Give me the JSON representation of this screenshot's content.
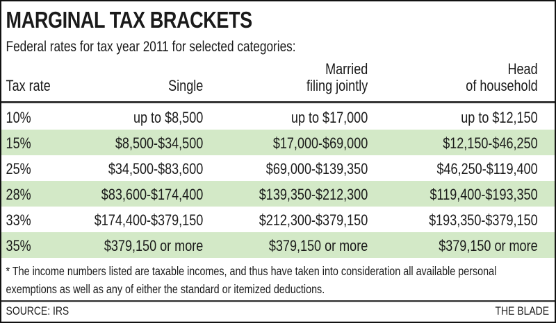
{
  "chart_data": {
    "type": "table",
    "title": "MARGINAL TAX BRACKETS",
    "subtitle": "Federal rates for tax year 2011 for selected categories:",
    "columns": [
      {
        "line1": "",
        "line2": "Tax rate"
      },
      {
        "line1": "",
        "line2": "Single"
      },
      {
        "line1": "Married",
        "line2": "filing jointly"
      },
      {
        "line1": "Head",
        "line2": "of household"
      }
    ],
    "rows": [
      [
        "10%",
        "up to $8,500",
        "up to $17,000",
        "up to $12,150"
      ],
      [
        "15%",
        "$8,500-$34,500",
        "$17,000-$69,000",
        "$12,150-$46,250"
      ],
      [
        "25%",
        "$34,500-$83,600",
        "$69,000-$139,350",
        "$46,250-$119,400"
      ],
      [
        "28%",
        "$83,600-$174,400",
        "$139,350-$212,300",
        "$119,400-$193,350"
      ],
      [
        "33%",
        "$174,400-$379,150",
        "$212,300-$379,150",
        "$193,350-$379,150"
      ],
      [
        "35%",
        "$379,150 or more",
        "$379,150 or more",
        "$379,150 or more"
      ]
    ],
    "row_shading": "alternate",
    "colors": {
      "alt_row": "#d3e9c7",
      "text": "#1a1a1a"
    },
    "footnote": "* The income numbers listed are taxable incomes, and thus have taken into consideration all available personal exemptions as well as any of either the standard or itemized deductions.",
    "source": "SOURCE: IRS",
    "credit": "THE BLADE"
  }
}
